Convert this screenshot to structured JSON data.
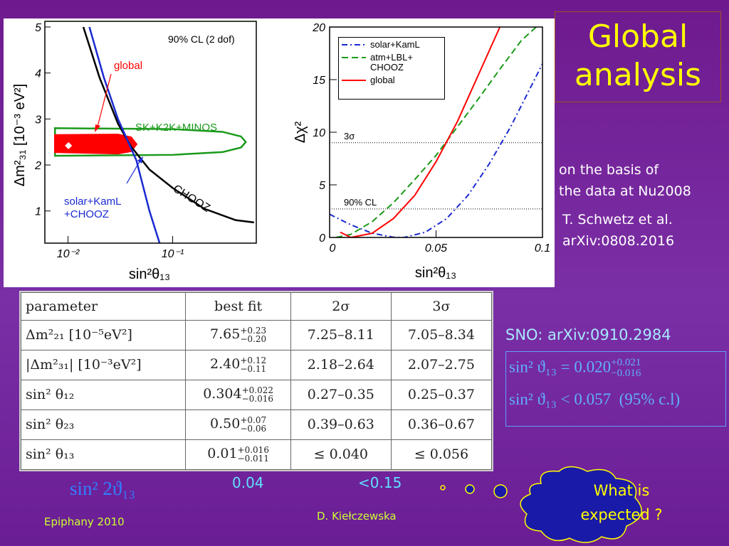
{
  "slide": {
    "title": "Global analysis",
    "basis": [
      "on the basis of",
      "the data at Nu2008"
    ],
    "reference": [
      "T. Schwetz et al.",
      "arXiv:0808.2016"
    ],
    "sno": "SNO: arXiv:0910.2984",
    "footer_left": "Epiphany 2010",
    "footer_center": "D. Kiełczewska",
    "bubble": [
      "What is",
      "expected ?"
    ]
  },
  "left_plot": {
    "x_label": "sin²θ₁₃",
    "y_label": "Δm²₃₁ [10⁻³ eV²]",
    "xscale": "log",
    "xlim": [
      0.006,
      0.63
    ],
    "ylim": [
      0.3,
      5
    ],
    "xticks": [
      {
        "value": 0.01,
        "label": "10⁻²"
      },
      {
        "value": 0.1,
        "label": "10⁻¹"
      }
    ],
    "yticks": [
      1,
      2,
      3,
      4,
      5
    ],
    "annotations": [
      "90% CL (2 dof)",
      "global",
      "SK+K2K+MINOS",
      "solar+KamL",
      "+CHOOZ",
      "CHOOZ"
    ],
    "lines": [
      {
        "color": "#000000",
        "x": [
          0.014,
          0.02,
          0.03,
          0.04,
          0.06,
          0.1,
          0.2,
          0.4,
          0.6
        ],
        "y": [
          5,
          3.9,
          2.9,
          2.4,
          1.9,
          1.5,
          1.05,
          0.8,
          0.75
        ]
      },
      {
        "color": "#1a2ad0",
        "x": [
          0.016,
          0.022,
          0.03,
          0.045,
          0.06,
          0.075
        ],
        "y": [
          5,
          3.9,
          3.0,
          2.1,
          1.0,
          0.3
        ]
      }
    ],
    "regions": [
      {
        "color": "#1a9a1a",
        "fill": false,
        "x": [
          0.0075,
          0.0075,
          0.1,
          0.3,
          0.45,
          0.5,
          0.45,
          0.3,
          0.1,
          0.0075
        ],
        "y": [
          2.2,
          2.8,
          2.78,
          2.72,
          2.62,
          2.5,
          2.38,
          2.28,
          2.22,
          2.2
        ]
      },
      {
        "color": "#ff0000",
        "fill": true,
        "x": [
          0.0075,
          0.0075,
          0.03,
          0.04,
          0.045,
          0.04,
          0.03
        ],
        "y": [
          2.28,
          2.65,
          2.66,
          2.6,
          2.45,
          2.3,
          2.25
        ]
      }
    ],
    "best_fit": {
      "x": 0.0101,
      "y": 2.42
    }
  },
  "right_plot": {
    "x_label": "sin²θ₁₃",
    "y_label": "Δχ²",
    "xlim": [
      0,
      0.1
    ],
    "ylim": [
      0,
      20
    ],
    "xticks": [
      0,
      0.05,
      0.1
    ],
    "yticks": [
      0,
      5,
      10,
      15,
      20
    ],
    "reference_lines": [
      {
        "value": 9,
        "label": "3σ"
      },
      {
        "value": 2.71,
        "label": "90% CL"
      }
    ],
    "series": [
      {
        "name": "solar+KamL",
        "color": "#1a2ad0",
        "style": "dashdot",
        "x": [
          0,
          0.01,
          0.02,
          0.03,
          0.035,
          0.045,
          0.055,
          0.065,
          0.075,
          0.085,
          0.095,
          0.1
        ],
        "y": [
          2.2,
          1.2,
          0.4,
          0.02,
          0,
          0.5,
          1.8,
          4,
          7,
          10.5,
          14.5,
          16.5
        ]
      },
      {
        "name": "atm+LBL+\nCHOOZ",
        "color": "#1a9a1a",
        "style": "dashed",
        "x": [
          0.003,
          0.01,
          0.02,
          0.03,
          0.04,
          0.05,
          0.06,
          0.07,
          0.08,
          0.09,
          0.097
        ],
        "y": [
          0,
          0.3,
          1.5,
          3.3,
          5.5,
          7.8,
          10.5,
          13.2,
          16,
          18.7,
          20
        ]
      },
      {
        "name": "global",
        "color": "#ff0000",
        "style": "solid",
        "x": [
          0.005,
          0.01,
          0.02,
          0.03,
          0.04,
          0.05,
          0.06,
          0.07,
          0.08
        ],
        "y": [
          0.5,
          0,
          0.4,
          1.8,
          4,
          7.2,
          11,
          15.5,
          20
        ]
      }
    ]
  },
  "table": {
    "header": [
      "parameter",
      "best fit",
      "2σ",
      "3σ"
    ],
    "rows": [
      [
        "Δm²₂₁ [10⁻⁵eV²]",
        {
          "value": "7.65",
          "plus": "+0.23",
          "minus": "−0.20"
        },
        "7.25–8.11",
        "7.05–8.34"
      ],
      [
        "|Δm²₃₁| [10⁻³eV²]",
        {
          "value": "2.40",
          "plus": "+0.12",
          "minus": "−0.11"
        },
        "2.18–2.64",
        "2.07–2.75"
      ],
      [
        "sin² θ₁₂",
        {
          "value": "0.304",
          "plus": "+0.022",
          "minus": "−0.016"
        },
        "0.27–0.35",
        "0.25–0.37"
      ],
      [
        "sin² θ₂₃",
        {
          "value": "0.50",
          "plus": "+0.07",
          "minus": "−0.06"
        },
        "0.39–0.63",
        "0.36–0.67"
      ],
      [
        "sin² θ₁₃",
        {
          "value": "0.01",
          "plus": "+0.016",
          "minus": "−0.011"
        },
        "≤ 0.040",
        "≤ 0.056"
      ]
    ]
  },
  "sno_box": [
    {
      "text": "sin² ϑ₁₃ = 0.020",
      "plus": "+0.021",
      "minus": "−0.016"
    },
    {
      "text": "sin² ϑ₁₃ < 0.057  (95% c.l)"
    }
  ],
  "expected": {
    "label": "sin² 2ϑ₁₃",
    "values": [
      "0.04",
      "<0.15"
    ]
  }
}
